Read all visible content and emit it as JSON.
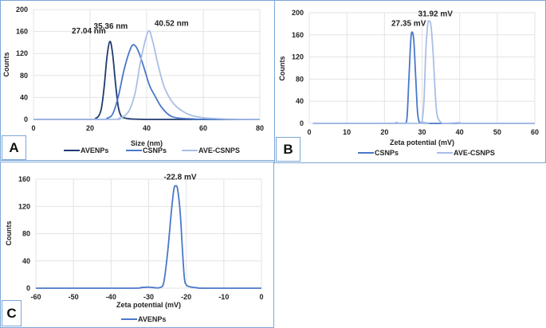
{
  "chart_data": [
    {
      "panel_label": "A",
      "type": "line",
      "title": "",
      "xlabel": "Size (nm)",
      "ylabel": "Counts",
      "xlim": [
        0,
        80
      ],
      "ylim": [
        0,
        200
      ],
      "xticks": [
        0,
        20,
        40,
        60,
        80
      ],
      "yticks": [
        0,
        40,
        80,
        120,
        160,
        200
      ],
      "grid": true,
      "legend_position": "bottom",
      "series": [
        {
          "name": "AVENPs",
          "color": "#1f3a6e",
          "x": [
            0,
            20,
            22,
            23,
            24,
            25,
            26,
            27.04,
            28,
            29,
            30,
            31,
            32,
            34,
            36,
            40,
            50,
            60,
            80
          ],
          "y": [
            0,
            0,
            2,
            6,
            20,
            60,
            115,
            142,
            118,
            65,
            22,
            6,
            3,
            1,
            0.5,
            0,
            0,
            0,
            0
          ]
        },
        {
          "name": "CSNPs",
          "color": "#4a78c8",
          "x": [
            0,
            24,
            26,
            28,
            30,
            32,
            34,
            35.36,
            37,
            39,
            41,
            43,
            45,
            47,
            49,
            52,
            56,
            60,
            80
          ],
          "y": [
            0,
            0,
            2,
            10,
            42,
            90,
            125,
            136,
            125,
            95,
            62,
            42,
            24,
            12,
            5,
            2,
            1,
            0,
            0
          ]
        },
        {
          "name": "AVE-CSNPS",
          "color": "#a9bfe6",
          "x": [
            0,
            28,
            30,
            32,
            34,
            36,
            38,
            40.52,
            42,
            44,
            46,
            48,
            50,
            53,
            56,
            60,
            65,
            70,
            80
          ],
          "y": [
            0,
            0,
            2,
            6,
            18,
            50,
            110,
            160,
            145,
            100,
            62,
            40,
            26,
            14,
            7,
            3,
            1.5,
            0.5,
            0
          ]
        }
      ],
      "annotations": [
        {
          "text": "27.04 nm",
          "x": 27.04,
          "y": 142
        },
        {
          "text": "35.36 nm",
          "x": 35.36,
          "y": 136
        },
        {
          "text": "40.52 nm",
          "x": 40.52,
          "y": 160
        }
      ]
    },
    {
      "panel_label": "B",
      "type": "line",
      "title": "",
      "xlabel": "Zeta potential (mV)",
      "ylabel": "Counts",
      "xlim": [
        0,
        60
      ],
      "ylim": [
        0,
        200
      ],
      "xticks": [
        0,
        10,
        20,
        30,
        40,
        50,
        60
      ],
      "yticks": [
        0,
        40,
        80,
        120,
        160,
        200
      ],
      "grid": true,
      "legend_position": "bottom",
      "series": [
        {
          "name": "CSNPs",
          "color": "#4a78c8",
          "x": [
            1,
            22,
            23,
            24,
            25.5,
            26,
            26.5,
            27,
            27.35,
            27.8,
            28.3,
            28.8,
            29.3,
            30,
            31,
            35,
            60
          ],
          "y": [
            0,
            0,
            1,
            0,
            0,
            10,
            80,
            150,
            165,
            150,
            85,
            20,
            2,
            1,
            0,
            0,
            0
          ]
        },
        {
          "name": "AVE-CSNPS",
          "color": "#a9bfe6",
          "x": [
            1,
            29.5,
            30,
            30.5,
            31,
            31.5,
            31.92,
            32.4,
            33,
            33.5,
            34,
            35,
            36,
            39,
            40,
            41,
            60
          ],
          "y": [
            0,
            0,
            4,
            40,
            130,
            178,
            185,
            175,
            120,
            55,
            15,
            2,
            0,
            1,
            2,
            0,
            0
          ]
        }
      ],
      "annotations": [
        {
          "text": "27.35 mV",
          "x": 27.35,
          "y": 165
        },
        {
          "text": "31.92 mV",
          "x": 31.92,
          "y": 185
        }
      ]
    },
    {
      "panel_label": "C",
      "type": "line",
      "title": "",
      "xlabel": "Zeta potential (mV)",
      "ylabel": "Counts",
      "xlim": [
        -60,
        0
      ],
      "ylim": [
        0,
        160
      ],
      "xticks": [
        -60,
        -50,
        -40,
        -30,
        -20,
        -10,
        0
      ],
      "yticks": [
        0,
        40,
        80,
        120,
        160
      ],
      "grid": true,
      "legend_position": "bottom",
      "series": [
        {
          "name": "AVENPs",
          "color": "#4a78c8",
          "x": [
            -60,
            -35,
            -32,
            -30,
            -28,
            -27,
            -26,
            -25,
            -24,
            -23.3,
            -22.8,
            -22.3,
            -21.6,
            -21,
            -20.5,
            -20,
            -19,
            -17,
            -15,
            0
          ],
          "y": [
            0,
            0,
            1,
            1.5,
            0.5,
            1,
            8,
            50,
            110,
            145,
            150,
            145,
            110,
            55,
            15,
            5,
            2,
            0.5,
            0,
            0
          ]
        }
      ],
      "annotations": [
        {
          "text": "-22.8 mV",
          "x": -22.8,
          "y": 150
        }
      ]
    }
  ],
  "panels": {
    "A": {
      "label": "A"
    },
    "B": {
      "label": "B"
    },
    "C": {
      "label": "C"
    }
  }
}
